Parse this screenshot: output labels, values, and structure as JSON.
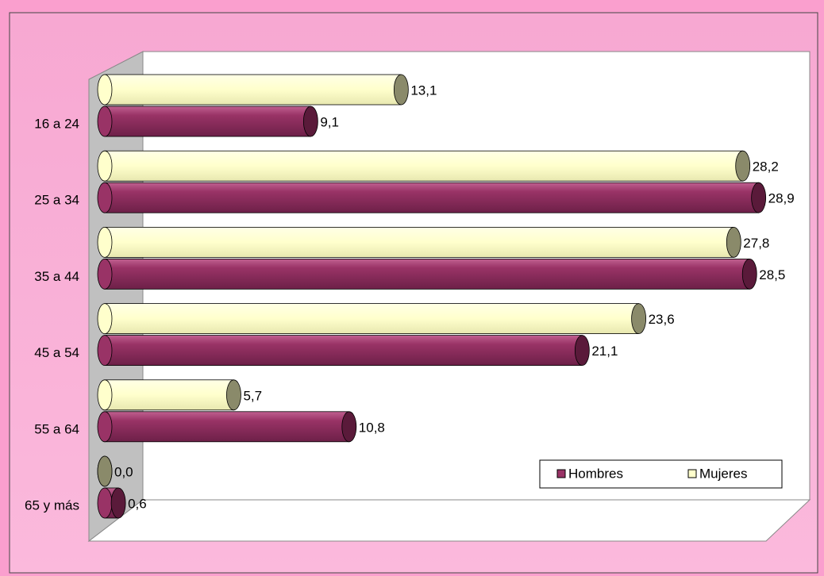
{
  "chart_data": {
    "type": "bar",
    "orientation": "horizontal",
    "categories": [
      "16 a 24",
      "25 a 34",
      "35 a 44",
      "45 a 54",
      "55 a 64",
      "65 y más"
    ],
    "series": [
      {
        "name": "Hombres",
        "color": "#993366",
        "values": [
          9.1,
          28.9,
          28.5,
          21.1,
          10.8,
          0.6
        ],
        "value_labels": [
          "9,1",
          "28,9",
          "28,5",
          "21,1",
          "10,8",
          "0,6"
        ]
      },
      {
        "name": "Mujeres",
        "color": "#ffffcc",
        "values": [
          13.1,
          28.2,
          27.8,
          23.6,
          5.7,
          0.0
        ],
        "value_labels": [
          "13,1",
          "28,2",
          "27,8",
          "23,6",
          "5,7",
          "0,0"
        ]
      }
    ],
    "xlim": [
      0,
      30
    ],
    "legend": "bottom-right"
  }
}
